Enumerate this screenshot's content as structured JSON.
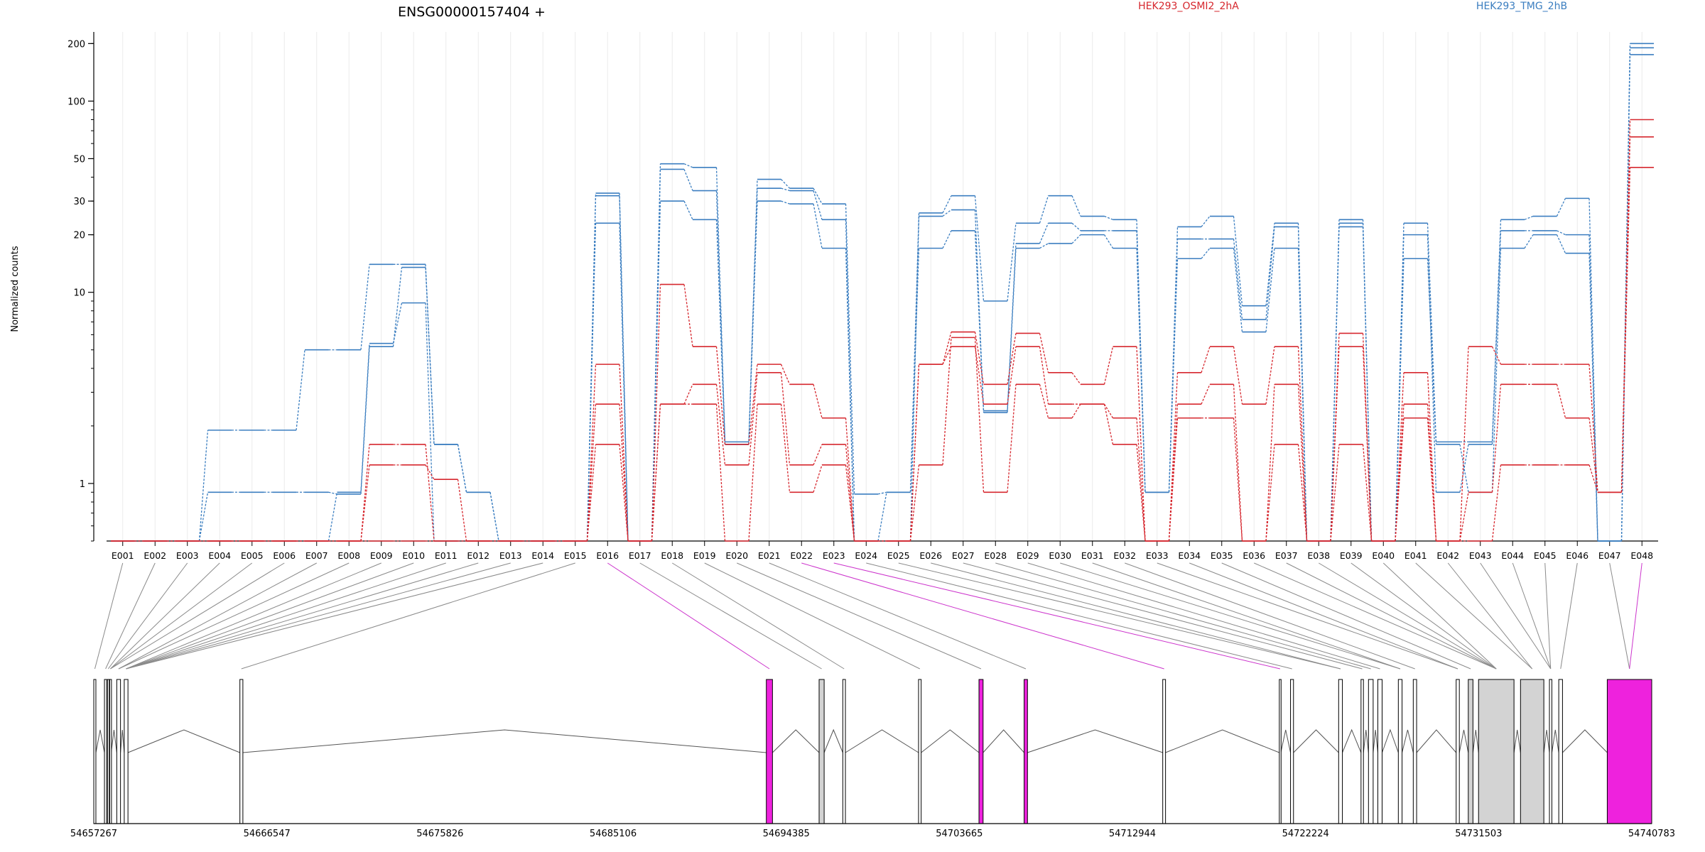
{
  "chart_data": {
    "type": "line",
    "title": "ENSG00000157404 +",
    "ylabel": "Normalized counts",
    "xlabel": "",
    "yscale": "log",
    "ylim": [
      0.5,
      230
    ],
    "yticks": [
      1,
      10,
      20,
      30,
      50,
      100,
      200
    ],
    "legend": {
      "placement": "top-right",
      "entries": [
        "HEK293_OSMI2_2hA",
        "HEK293_TMG_2hB"
      ]
    },
    "categories": [
      "E001",
      "E002",
      "E003",
      "E004",
      "E005",
      "E006",
      "E007",
      "E008",
      "E009",
      "E010",
      "E011",
      "E012",
      "E013",
      "E014",
      "E015",
      "E016",
      "E017",
      "E018",
      "E019",
      "E020",
      "E021",
      "E022",
      "E023",
      "E024",
      "E025",
      "E026",
      "E027",
      "E028",
      "E029",
      "E030",
      "E031",
      "E032",
      "E033",
      "E034",
      "E035",
      "E036",
      "E037",
      "E038",
      "E039",
      "E040",
      "E041",
      "E042",
      "E043",
      "E044",
      "E045",
      "E046",
      "E047",
      "E048"
    ],
    "series": [
      {
        "group": "HEK293_TMG_2hB",
        "color": "#3b7ec0",
        "values": [
          0.5,
          0.5,
          0.5,
          0.9,
          0.9,
          0.9,
          0.9,
          0.88,
          5.2,
          13.5,
          1.6,
          0.9,
          0.5,
          0.5,
          0.5,
          33,
          0.5,
          47,
          45,
          1.65,
          39,
          35,
          29,
          0.88,
          0.9,
          26,
          32,
          9,
          23,
          32,
          25,
          24,
          0.9,
          22,
          25,
          8.5,
          23,
          0.5,
          24,
          0.5,
          23,
          1.65,
          1.65,
          24,
          25,
          31,
          0.5,
          200
        ]
      },
      {
        "group": "HEK293_TMG_2hB",
        "color": "#3b7ec0",
        "values": [
          0.5,
          0.5,
          0.5,
          1.9,
          1.9,
          1.9,
          5.0,
          5.0,
          14,
          14,
          1.6,
          0.9,
          0.5,
          0.5,
          0.5,
          32,
          0.5,
          44,
          34,
          1.6,
          35,
          34,
          24,
          0.5,
          0.5,
          25,
          27,
          2.4,
          18,
          23,
          21,
          21,
          0.9,
          19,
          19,
          7.2,
          22,
          0.5,
          23,
          0.5,
          20,
          0.9,
          1.6,
          21,
          21,
          20,
          0.5,
          190
        ]
      },
      {
        "group": "HEK293_TMG_2hB",
        "color": "#3b7ec0",
        "values": [
          0.5,
          0.5,
          0.5,
          0.5,
          0.5,
          0.5,
          0.5,
          0.9,
          5.4,
          8.8,
          0.5,
          0.5,
          0.5,
          0.5,
          0.5,
          23,
          0.5,
          30,
          24,
          1.6,
          30,
          29,
          17,
          0.5,
          0.9,
          17,
          21,
          2.35,
          17,
          18,
          20,
          17,
          0.9,
          15,
          17,
          6.2,
          17,
          0.5,
          22,
          0.5,
          15,
          1.6,
          0.9,
          17,
          20,
          16,
          0.5,
          175
        ]
      },
      {
        "group": "HEK293_OSMI2_2hA",
        "color": "#d6272e",
        "values": [
          0.5,
          0.5,
          0.5,
          0.5,
          0.5,
          0.5,
          0.5,
          0.5,
          1.6,
          1.6,
          0.5,
          0.5,
          0.5,
          0.5,
          0.5,
          4.2,
          0.5,
          11,
          5.2,
          1.6,
          4.2,
          3.3,
          2.2,
          0.5,
          0.5,
          4.2,
          6.2,
          3.3,
          6.1,
          3.8,
          3.3,
          5.2,
          0.5,
          3.8,
          5.2,
          2.6,
          5.2,
          0.5,
          6.1,
          0.5,
          3.8,
          0.5,
          5.2,
          4.2,
          4.2,
          4.2,
          0.9,
          80
        ]
      },
      {
        "group": "HEK293_OSMI2_2hA",
        "color": "#d6272e",
        "values": [
          0.5,
          0.5,
          0.5,
          0.5,
          0.5,
          0.5,
          0.5,
          0.5,
          1.25,
          1.25,
          1.05,
          0.5,
          0.5,
          0.5,
          0.5,
          2.6,
          0.5,
          2.6,
          3.3,
          1.25,
          3.8,
          1.25,
          1.6,
          0.5,
          0.5,
          4.2,
          5.2,
          2.6,
          5.2,
          2.6,
          2.6,
          1.6,
          0.5,
          2.6,
          3.3,
          0.5,
          3.3,
          0.5,
          5.2,
          0.5,
          2.6,
          0.5,
          0.9,
          3.3,
          3.3,
          2.2,
          0.9,
          65
        ]
      },
      {
        "group": "HEK293_OSMI2_2hA",
        "color": "#d6272e",
        "values": [
          0.5,
          0.5,
          0.5,
          0.5,
          0.5,
          0.5,
          0.5,
          0.5,
          0.5,
          0.5,
          0.5,
          0.5,
          0.5,
          0.5,
          0.5,
          1.6,
          0.5,
          2.6,
          2.6,
          0.5,
          2.6,
          0.9,
          1.25,
          0.5,
          0.5,
          1.25,
          5.8,
          0.9,
          3.3,
          2.2,
          2.6,
          2.2,
          0.5,
          2.2,
          2.2,
          0.5,
          1.6,
          0.5,
          1.6,
          0.5,
          2.2,
          0.5,
          0.5,
          1.25,
          1.25,
          1.25,
          0.9,
          45
        ]
      }
    ],
    "gene_model": {
      "coordinate_ticks": [
        "54657267",
        "54666547",
        "54675826",
        "54685106",
        "54694385",
        "54703665",
        "54712944",
        "54722224",
        "54731503",
        "54740783"
      ],
      "exons": [
        {
          "start": 54657267,
          "end": 54657380,
          "fill": "white"
        },
        {
          "start": 54657840,
          "end": 54657960,
          "fill": "white"
        },
        {
          "start": 54658000,
          "end": 54658080,
          "fill": "white"
        },
        {
          "start": 54658120,
          "end": 54658200,
          "fill": "white"
        },
        {
          "start": 54658500,
          "end": 54658700,
          "fill": "white"
        },
        {
          "start": 54658900,
          "end": 54659100,
          "fill": "white"
        },
        {
          "start": 54665100,
          "end": 54665260,
          "fill": "white"
        },
        {
          "start": 54693320,
          "end": 54693650,
          "fill": "magenta"
        },
        {
          "start": 54696150,
          "end": 54696420,
          "fill": "lightgray"
        },
        {
          "start": 54697420,
          "end": 54697560,
          "fill": "white"
        },
        {
          "start": 54701480,
          "end": 54701620,
          "fill": "white"
        },
        {
          "start": 54704720,
          "end": 54704940,
          "fill": "magenta"
        },
        {
          "start": 54707140,
          "end": 54707320,
          "fill": "magenta"
        },
        {
          "start": 54714570,
          "end": 54714720,
          "fill": "white"
        },
        {
          "start": 54720820,
          "end": 54720900,
          "fill": "white"
        },
        {
          "start": 54721420,
          "end": 54721580,
          "fill": "white"
        },
        {
          "start": 54724000,
          "end": 54724200,
          "fill": "white"
        },
        {
          "start": 54725200,
          "end": 54725330,
          "fill": "white"
        },
        {
          "start": 54725600,
          "end": 54725850,
          "fill": "white"
        },
        {
          "start": 54726100,
          "end": 54726330,
          "fill": "white"
        },
        {
          "start": 54727200,
          "end": 54727400,
          "fill": "white"
        },
        {
          "start": 54728000,
          "end": 54728180,
          "fill": "white"
        },
        {
          "start": 54730300,
          "end": 54730470,
          "fill": "white"
        },
        {
          "start": 54730950,
          "end": 54731200,
          "fill": "lightgray"
        },
        {
          "start": 54731500,
          "end": 54733400,
          "fill": "lightgray"
        },
        {
          "start": 54733750,
          "end": 54735000,
          "fill": "lightgray"
        },
        {
          "start": 54735300,
          "end": 54735430,
          "fill": "white"
        },
        {
          "start": 54735800,
          "end": 54736000,
          "fill": "white"
        },
        {
          "start": 54738400,
          "end": 54740783,
          "fill": "magenta"
        }
      ],
      "bin_exon_map": [
        0,
        1,
        2,
        3,
        3,
        3,
        4,
        4,
        5,
        5,
        5,
        5,
        5,
        5,
        6,
        7,
        8,
        9,
        10,
        11,
        12,
        13,
        14,
        15,
        16,
        16,
        17,
        18,
        19,
        20,
        20,
        21,
        22,
        22,
        23,
        24,
        24,
        24,
        24,
        24,
        25,
        25,
        26,
        26,
        26,
        27,
        28,
        28
      ],
      "highlighted_bins": [
        "E016",
        "E022",
        "E023",
        "E048"
      ]
    }
  }
}
